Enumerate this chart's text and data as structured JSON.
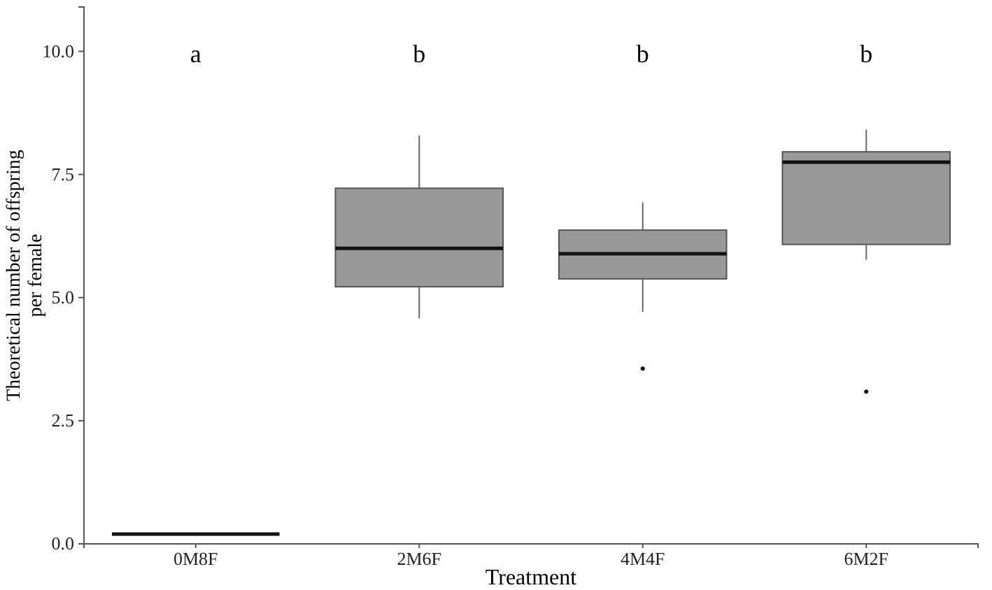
{
  "chart_data": {
    "type": "box",
    "xlabel": "Treatment",
    "ylabel": "Theoretical number of offspring per female",
    "categories": [
      "0M8F",
      "2M6F",
      "4M4F",
      "6M2F"
    ],
    "boxes": [
      {
        "low": 0.2,
        "q1": 0.2,
        "median": 0.2,
        "q3": 0.2,
        "high": 0.2
      },
      {
        "low": 4.58,
        "q1": 5.22,
        "median": 6.0,
        "q3": 7.22,
        "high": 8.29
      },
      {
        "low": 4.71,
        "q1": 5.38,
        "median": 5.89,
        "q3": 6.37,
        "high": 6.93,
        "outliers": [
          3.56
        ]
      },
      {
        "low": 5.77,
        "q1": 6.08,
        "median": 7.75,
        "q3": 7.96,
        "high": 8.41,
        "outliers": [
          3.09
        ]
      }
    ],
    "colors": [
      "#111111",
      "#999999",
      "#999999",
      "#999999"
    ],
    "ylim": [
      0,
      10.9
    ],
    "yticks": [
      {
        "value": 0,
        "label": "0.0"
      },
      {
        "value": 2.5,
        "label": "2.5"
      },
      {
        "value": 5,
        "label": "5.0"
      },
      {
        "value": 7.5,
        "label": "7.5"
      },
      {
        "value": 10,
        "label": "10.0"
      }
    ],
    "grid": false,
    "annotations": [
      "a",
      "b",
      "b",
      "b"
    ]
  }
}
